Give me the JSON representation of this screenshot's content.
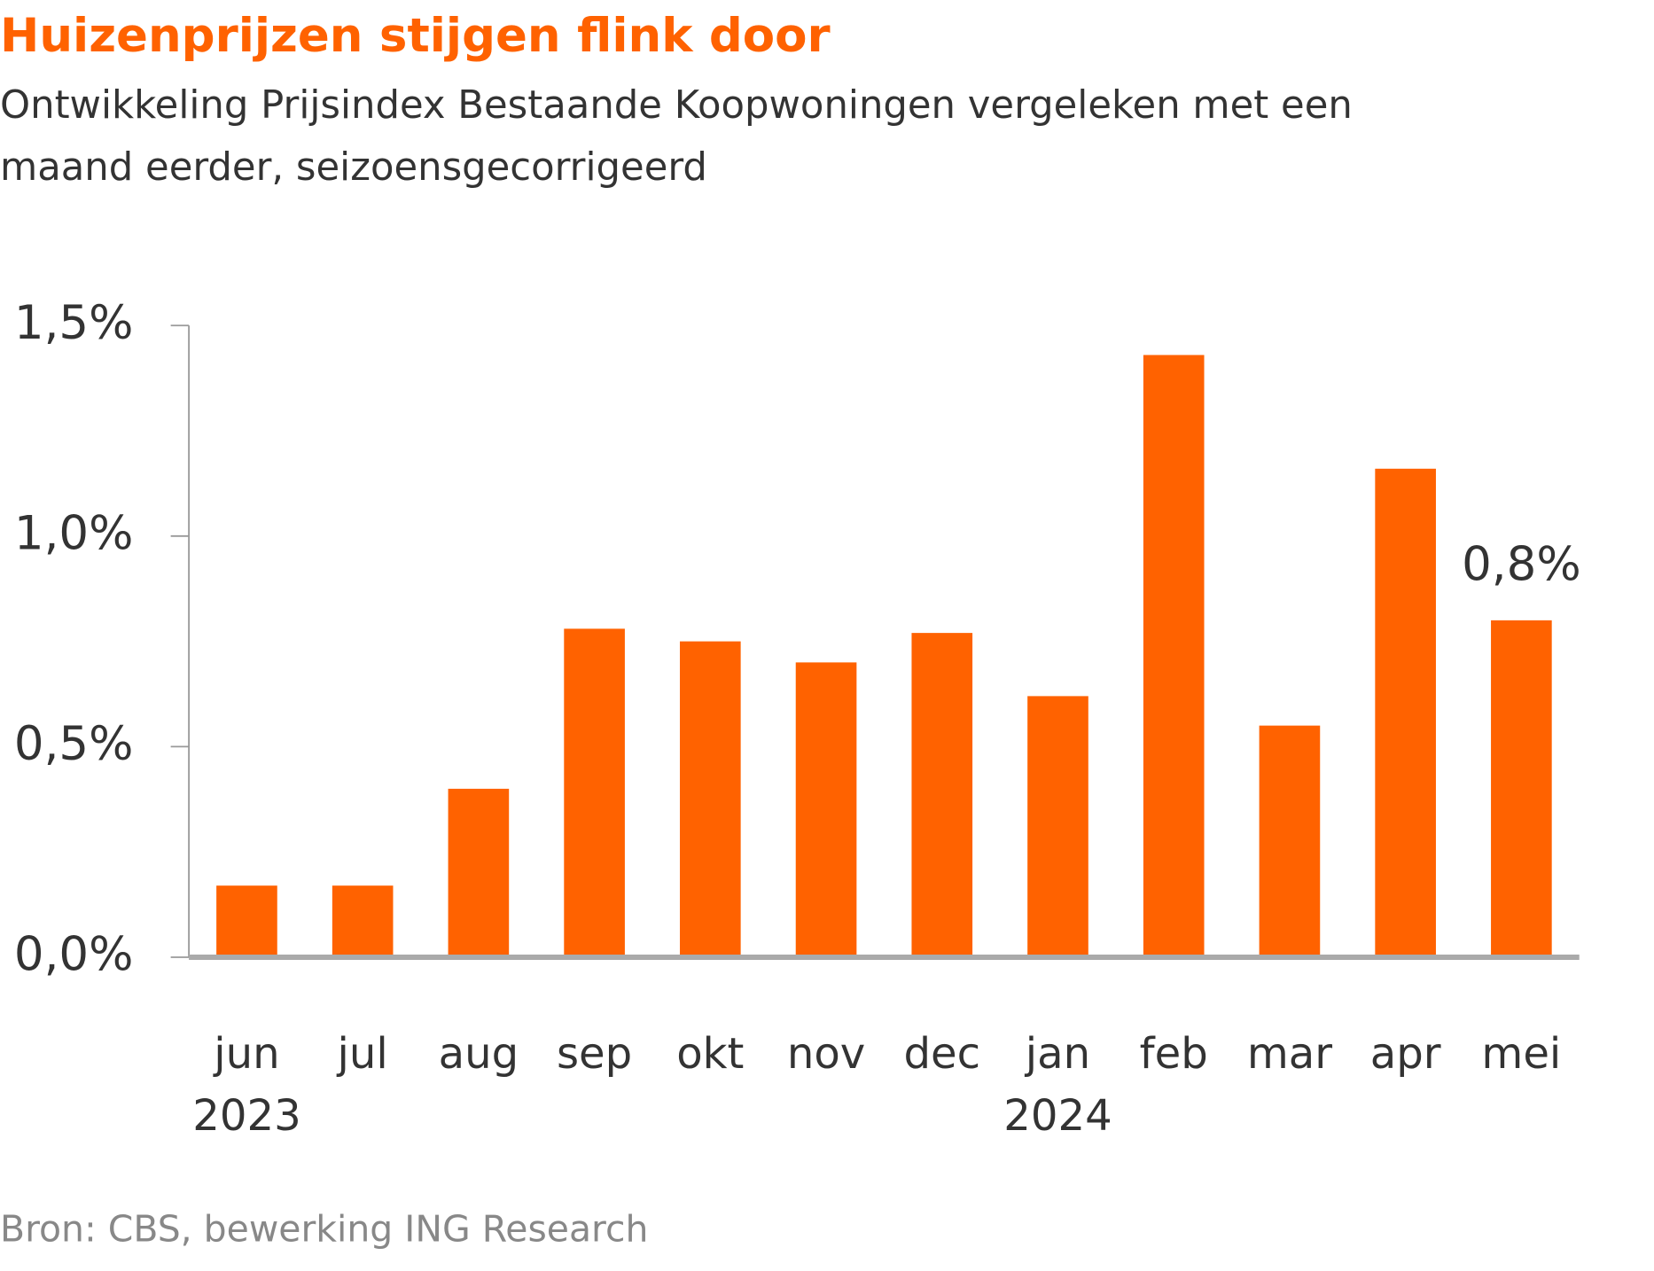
{
  "chart_data": {
    "type": "bar",
    "title": "Huizenprijzen stijgen flink door",
    "subtitle": [
      "Ontwikkeling Prijsindex Bestaande Koopwoningen vergeleken met een",
      "maand eerder, seizoensgecorrigeerd"
    ],
    "categories": [
      "jun",
      "jul",
      "aug",
      "sep",
      "okt",
      "nov",
      "dec",
      "jan",
      "feb",
      "mar",
      "apr",
      "mei"
    ],
    "category_years": [
      "2023",
      null,
      null,
      null,
      null,
      null,
      null,
      "2024",
      null,
      null,
      null,
      null
    ],
    "values": [
      0.17,
      0.17,
      0.4,
      0.78,
      0.75,
      0.7,
      0.77,
      0.62,
      1.43,
      0.55,
      1.16,
      0.8
    ],
    "value_labels": [
      null,
      null,
      null,
      null,
      null,
      null,
      null,
      null,
      null,
      null,
      null,
      "0,8%"
    ],
    "color": "#ff6200",
    "ylim": [
      0,
      1.5
    ],
    "yticks": [
      {
        "value": 0,
        "label": "0,0%"
      },
      {
        "value": 0.5,
        "label": "0,5%"
      },
      {
        "value": 1,
        "label": "1,0%"
      },
      {
        "value": 1.5,
        "label": "1,5%"
      }
    ],
    "source": "Bron: CBS, bewerking ING Research"
  }
}
